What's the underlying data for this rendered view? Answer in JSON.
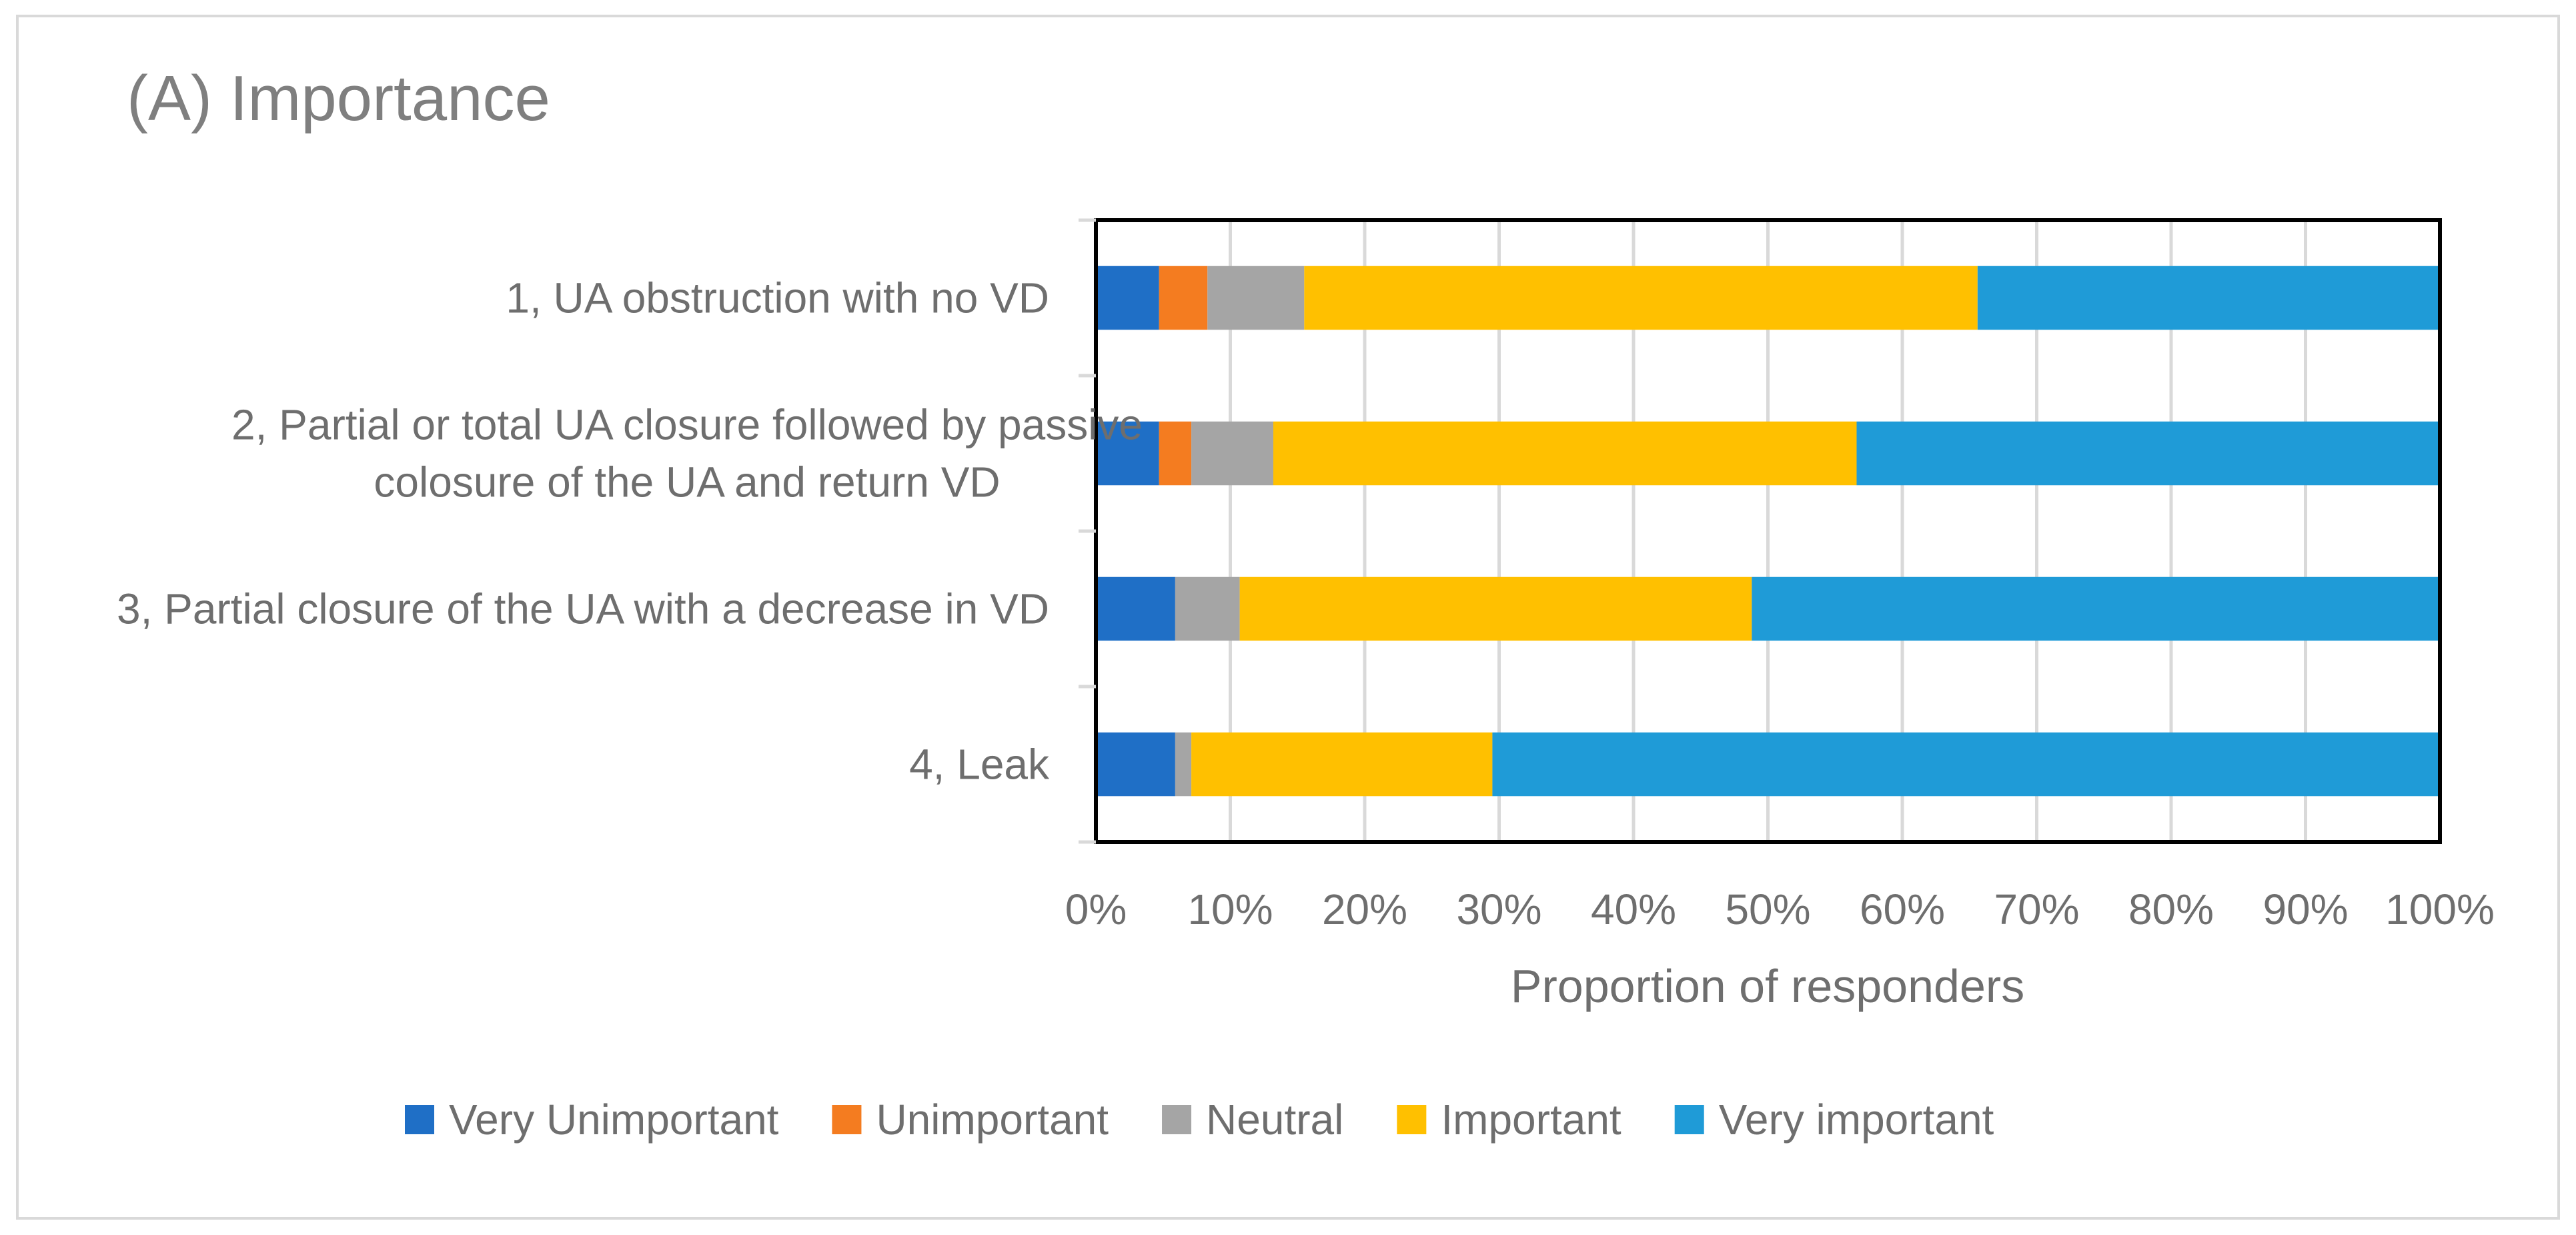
{
  "chart_data": {
    "type": "bar",
    "orientation": "horizontal",
    "stacked": true,
    "title": "(A) Importance",
    "xlabel": "Proportion of responders",
    "ylabel": "",
    "xlim": [
      0,
      100
    ],
    "x_ticks": [
      "0%",
      "10%",
      "20%",
      "30%",
      "40%",
      "50%",
      "60%",
      "70%",
      "80%",
      "90%",
      "100%"
    ],
    "grid": true,
    "legend_position": "bottom",
    "categories": [
      [
        "1, UA obstruction with no VD"
      ],
      [
        "2, Partial or total UA closure followed by passive",
        "colosure of the UA and return VD"
      ],
      [
        "3, Partial closure of the UA with a decrease in VD"
      ],
      [
        "4, Leak"
      ]
    ],
    "series": [
      {
        "name": "Very Unimportant",
        "color": "#1f6fc6",
        "values": [
          4.7,
          4.7,
          5.9,
          5.9
        ]
      },
      {
        "name": "Unimportant",
        "color": "#f47c20",
        "values": [
          3.6,
          2.4,
          0,
          0
        ]
      },
      {
        "name": "Neutral",
        "color": "#a5a5a5",
        "values": [
          7.2,
          6.1,
          4.8,
          1.2
        ]
      },
      {
        "name": "Important",
        "color": "#ffc000",
        "values": [
          50.1,
          43.4,
          38.1,
          22.4
        ]
      },
      {
        "name": "Very important",
        "color": "#1f9bd7",
        "values": [
          34.4,
          43.4,
          51.2,
          70.5
        ]
      }
    ]
  }
}
